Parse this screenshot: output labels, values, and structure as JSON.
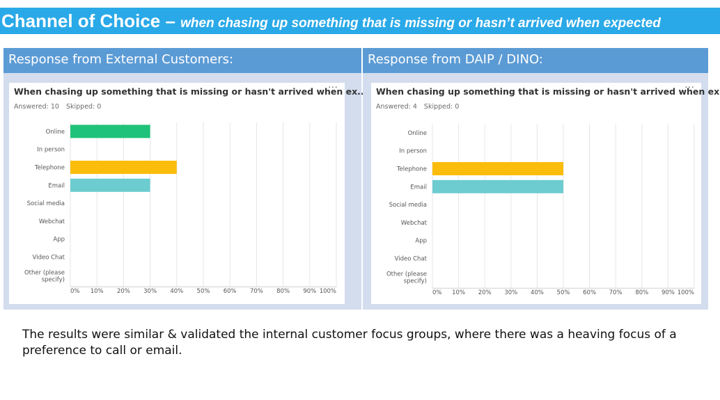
{
  "title": {
    "main": "Channel of Choice –",
    "sub": "when chasing up something that is missing or hasn’t arrived when expected"
  },
  "columns": [
    {
      "heading": "Response from External Customers:"
    },
    {
      "heading": "Response from DAIP / DINO:"
    }
  ],
  "footer": "The results were similar & validated the internal customer focus groups, where there was a heaving focus of a preference to call or email.",
  "colors": {
    "title_bar": "#2aa9e8",
    "header": "#5b9bd5",
    "online": "#1fc27a",
    "telephone": "#fbbc0b",
    "email": "#6cccd0"
  },
  "chart_data": [
    {
      "type": "bar",
      "orientation": "horizontal",
      "title": "When chasing up something that is missing or hasn't arrived when ex...",
      "answered_label": "Answered: 10",
      "skipped_label": "Skipped: 0",
      "categories": [
        "Online",
        "In person",
        "Telephone",
        "Email",
        "Social media",
        "Webchat",
        "App",
        "Video Chat",
        "Other (please specify)"
      ],
      "category_lines": [
        [
          "Online"
        ],
        [
          "In person"
        ],
        [
          "Telephone"
        ],
        [
          "Email"
        ],
        [
          "Social media"
        ],
        [
          "Webchat"
        ],
        [
          "App"
        ],
        [
          "Video Chat"
        ],
        [
          "Other (please",
          "specify)"
        ]
      ],
      "values": [
        30,
        0,
        40,
        30,
        0,
        0,
        0,
        0,
        0
      ],
      "bar_colors": [
        "#1fc27a",
        null,
        "#fbbc0b",
        "#6cccd0",
        null,
        null,
        null,
        null,
        null
      ],
      "xlim": [
        0,
        100
      ],
      "xticks": [
        "0%",
        "10%",
        "20%",
        "30%",
        "40%",
        "50%",
        "60%",
        "70%",
        "80%",
        "90%",
        "100%"
      ],
      "grid": true
    },
    {
      "type": "bar",
      "orientation": "horizontal",
      "title": "When chasing up something that is missing or hasn't arrived when ex...",
      "answered_label": "Answered: 4",
      "skipped_label": "Skipped: 0",
      "categories": [
        "Online",
        "In person",
        "Telephone",
        "Email",
        "Social media",
        "Webchat",
        "App",
        "Video Chat",
        "Other (please specify)"
      ],
      "category_lines": [
        [
          "Online"
        ],
        [
          "In person"
        ],
        [
          "Telephone"
        ],
        [
          "Email"
        ],
        [
          "Social media"
        ],
        [
          "Webchat"
        ],
        [
          "App"
        ],
        [
          "Video Chat"
        ],
        [
          "Other (please",
          "specify)"
        ]
      ],
      "values": [
        0,
        0,
        50,
        50,
        0,
        0,
        0,
        0,
        0
      ],
      "bar_colors": [
        null,
        null,
        "#fbbc0b",
        "#6cccd0",
        null,
        null,
        null,
        null,
        null
      ],
      "xlim": [
        0,
        100
      ],
      "xticks": [
        "0%",
        "10%",
        "20%",
        "30%",
        "40%",
        "50%",
        "60%",
        "70%",
        "80%",
        "90%",
        "100%"
      ],
      "grid": true
    }
  ]
}
